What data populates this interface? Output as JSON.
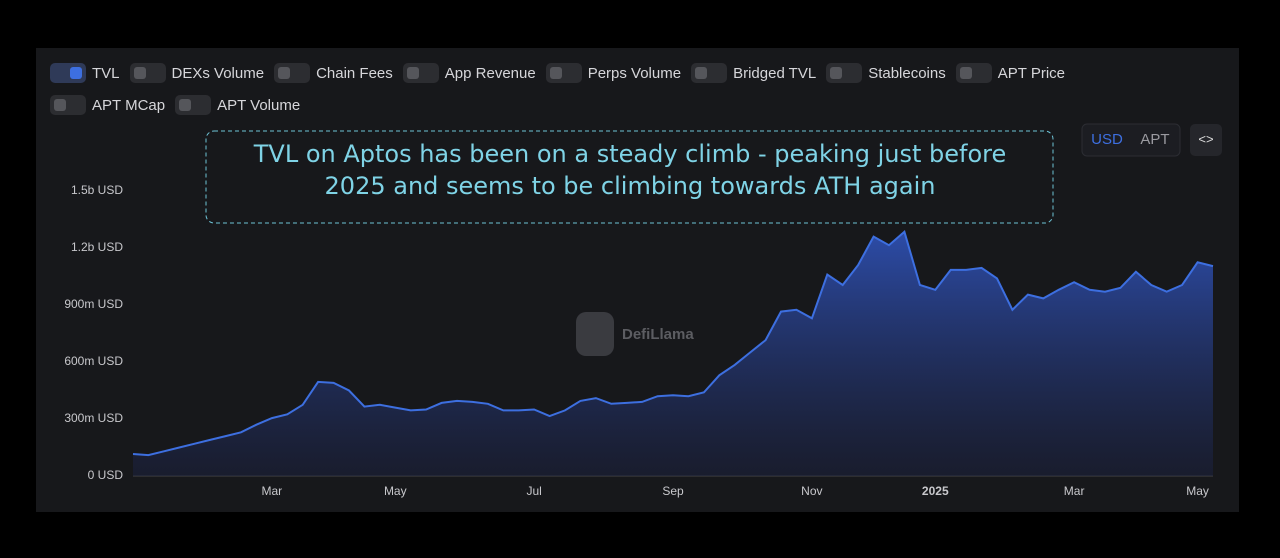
{
  "chart_data": {
    "type": "area",
    "toggles": [
      "DEXs Volume",
      "Chain Fees",
      "App Revenue",
      "Perps Volume",
      "Bridged TVL",
      "Stablecoins",
      "APT Price",
      "APT MCap",
      "APT Volume"
    ],
    "annotation": "TVL on Aptos has been on a steady climb - peaking just before 2025 and seems to be climbing towards ATH again",
    "currency_options": [
      "USD",
      "APT"
    ],
    "watermark": "DefiLlama",
    "categories": [
      null,
      null,
      null,
      null,
      null,
      null,
      null,
      null,
      null,
      "Mar",
      null,
      null,
      null,
      null,
      null,
      null,
      null,
      "May",
      null,
      null,
      null,
      null,
      null,
      null,
      null,
      null,
      "Jul",
      null,
      null,
      null,
      null,
      null,
      null,
      null,
      null,
      "Sep",
      null,
      null,
      null,
      null,
      null,
      null,
      null,
      null,
      "Nov",
      null,
      null,
      null,
      null,
      null,
      null,
      null,
      "2025",
      null,
      null,
      null,
      null,
      null,
      null,
      null,
      null,
      "Mar",
      null,
      null,
      null,
      null,
      null,
      null,
      null,
      "May",
      null
    ],
    "series": [
      {
        "name": "TVL",
        "color": "#3d6fe0",
        "values": [
          116000000,
          110000000,
          130000000,
          150000000,
          170000000,
          190000000,
          210000000,
          230000000,
          270000000,
          305000000,
          325000000,
          375000000,
          495000000,
          490000000,
          450000000,
          365000000,
          375000000,
          360000000,
          345000000,
          350000000,
          385000000,
          395000000,
          390000000,
          380000000,
          345000000,
          345000000,
          350000000,
          315000000,
          345000000,
          395000000,
          410000000,
          380000000,
          385000000,
          390000000,
          420000000,
          425000000,
          420000000,
          440000000,
          530000000,
          585000000,
          650000000,
          715000000,
          865000000,
          875000000,
          830000000,
          1060000000,
          1005000000,
          1110000000,
          1260000000,
          1215000000,
          1285000000,
          1005000000,
          980000000,
          1085000000,
          1085000000,
          1095000000,
          1040000000,
          875000000,
          955000000,
          935000000,
          980000000,
          1020000000,
          980000000,
          970000000,
          990000000,
          1075000000,
          1005000000,
          970000000,
          1005000000,
          1125000000,
          1105000000
        ]
      }
    ],
    "ylim": [
      0,
      1650000000
    ],
    "yticks": [
      {
        "value": 0,
        "label": "0 USD"
      },
      {
        "value": 300000000,
        "label": "300m USD"
      },
      {
        "value": 600000000,
        "label": "600m USD"
      },
      {
        "value": 900000000,
        "label": "900m USD"
      },
      {
        "value": 1200000000,
        "label": "1.2b USD"
      },
      {
        "value": 1500000000,
        "label": "1.5b USD"
      }
    ],
    "grid": false
  }
}
